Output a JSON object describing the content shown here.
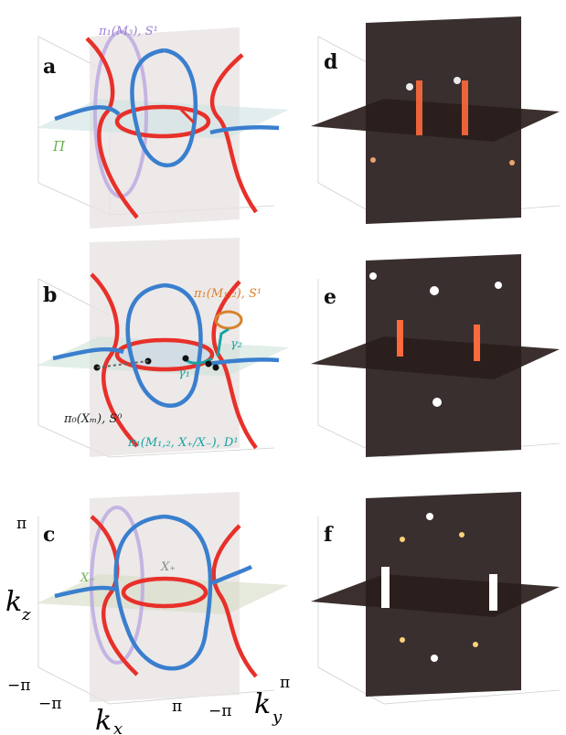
{
  "panels": {
    "a": {
      "letter": "a",
      "annot_pi": "π₁(M₃), S¹",
      "annot_plane": "Π"
    },
    "b": {
      "letter": "b",
      "annot_m12": "π₁(M₁,₂), S¹",
      "annot_gamma2": "γ₂",
      "annot_gamma1": "γ₁",
      "annot_x0": "π₀(Xₘ), S⁰",
      "annot_xpm": "π₁(M₁,₂, X₊/X₋), D¹"
    },
    "c": {
      "letter": "c",
      "annot_xminus": "X₋",
      "annot_xplus": "X₊"
    },
    "d": {
      "letter": "d"
    },
    "e": {
      "letter": "e"
    },
    "f": {
      "letter": "f"
    }
  },
  "axes": {
    "kz": "k",
    "kz_sub": "z",
    "kx": "k",
    "kx_sub": "x",
    "ky": "k",
    "ky_sub": "y",
    "pi_top": "π",
    "minus_pi_left": "−π",
    "kx_min": "−π",
    "kx_max": "π",
    "ky_min": "−π",
    "ky_max": "π"
  },
  "colors": {
    "red": "#e8302a",
    "blue": "#3a7fce",
    "purple": "#b9a6e0",
    "green": "#6ab04c",
    "orange": "#d9822b",
    "teal": "#17a3a3",
    "heat_dark": "#3a2a2a"
  }
}
